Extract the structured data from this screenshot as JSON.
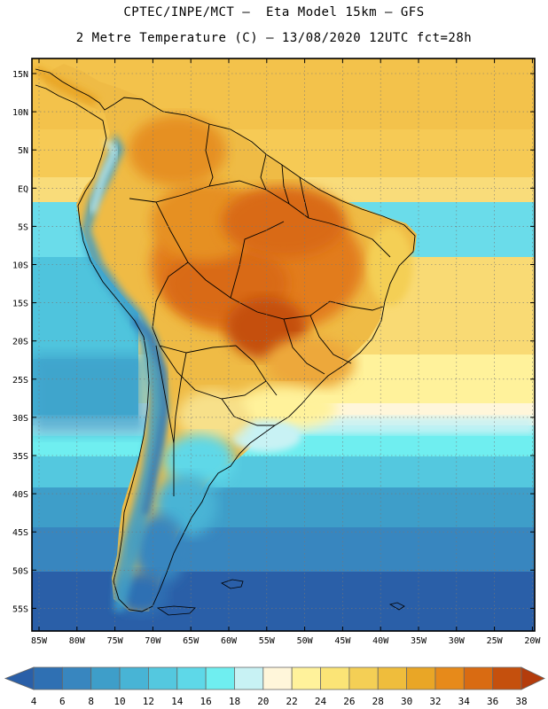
{
  "title": {
    "line1": "CPTEC/INPE/MCT –  Eta Model 15km – GFS",
    "line2": "2 Metre Temperature (C) – 13/08/2020 12UTC fct=28h"
  },
  "map": {
    "region": "South America",
    "variable": "2 Metre Temperature",
    "units": "C",
    "lat_labels": [
      "15N",
      "10N",
      "5N",
      "EQ",
      "5S",
      "10S",
      "15S",
      "20S",
      "25S",
      "30S",
      "35S",
      "40S",
      "45S",
      "50S",
      "55S"
    ],
    "lon_labels": [
      "85W",
      "80W",
      "75W",
      "70W",
      "65W",
      "60W",
      "55W",
      "50W",
      "45W",
      "40W",
      "35W",
      "30W",
      "25W",
      "20W"
    ]
  },
  "colorbar": {
    "labels": [
      "4",
      "6",
      "8",
      "10",
      "12",
      "14",
      "16",
      "18",
      "20",
      "22",
      "24",
      "26",
      "28",
      "30",
      "32",
      "34",
      "36",
      "38"
    ],
    "colors": [
      "#2a5fa8",
      "#2f70b3",
      "#3886bf",
      "#3e9ec9",
      "#48b4d5",
      "#54c8df",
      "#5ed8e8",
      "#6feef0",
      "#c8f2f4",
      "#fff6da",
      "#fff29b",
      "#fbe476",
      "#f4cf55",
      "#efbd3c",
      "#e9a626",
      "#e78a1a",
      "#d96b12",
      "#c5500d",
      "#b43c0c"
    ]
  }
}
